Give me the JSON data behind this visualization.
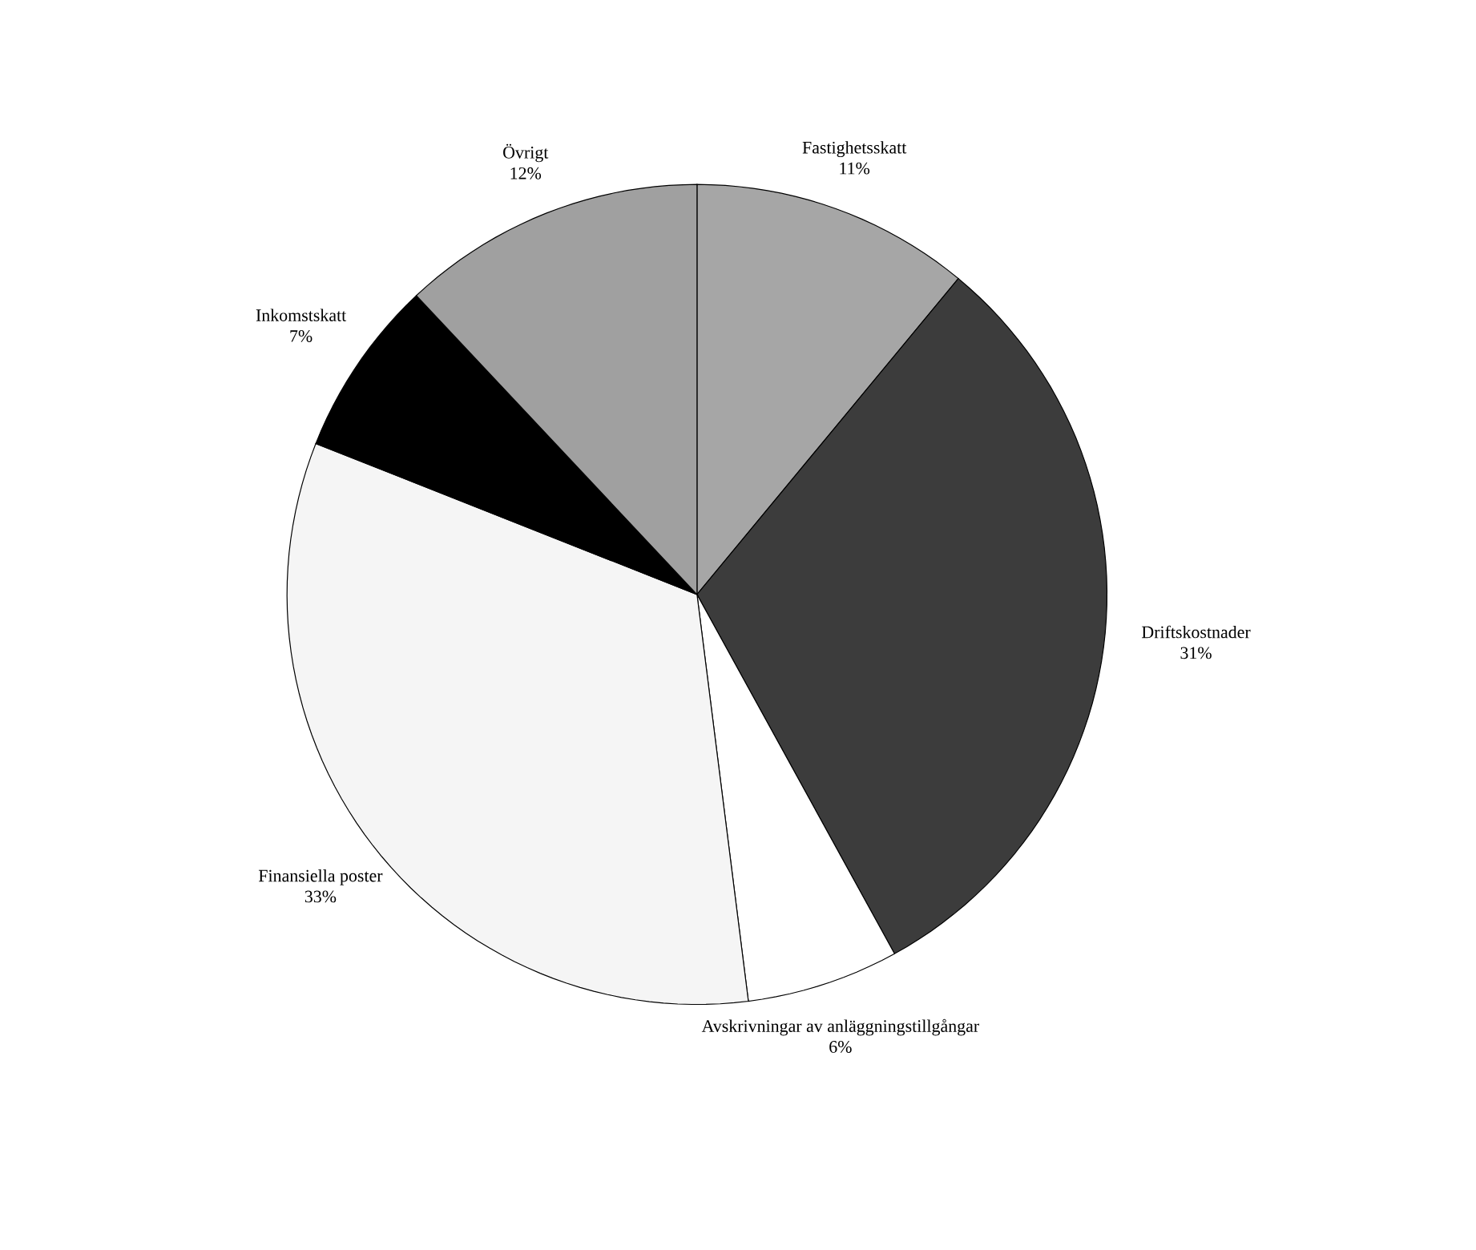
{
  "chart_data": {
    "type": "pie",
    "categories": [
      "Fastighetsskatt",
      "Driftskostnader",
      "Avskrivningar av anläggningstillgångar",
      "Finansiella poster",
      "Inkomstskatt",
      "Övrigt"
    ],
    "values": [
      11,
      31,
      6,
      33,
      7,
      12
    ],
    "value_labels": [
      "11%",
      "31%",
      "6%",
      "33%",
      "7%",
      "12%"
    ],
    "colors": [
      "#a6a6a6",
      "#3c3c3c",
      "#ffffff",
      "#f5f5f5",
      "#000000",
      "#a0a0a0"
    ]
  }
}
